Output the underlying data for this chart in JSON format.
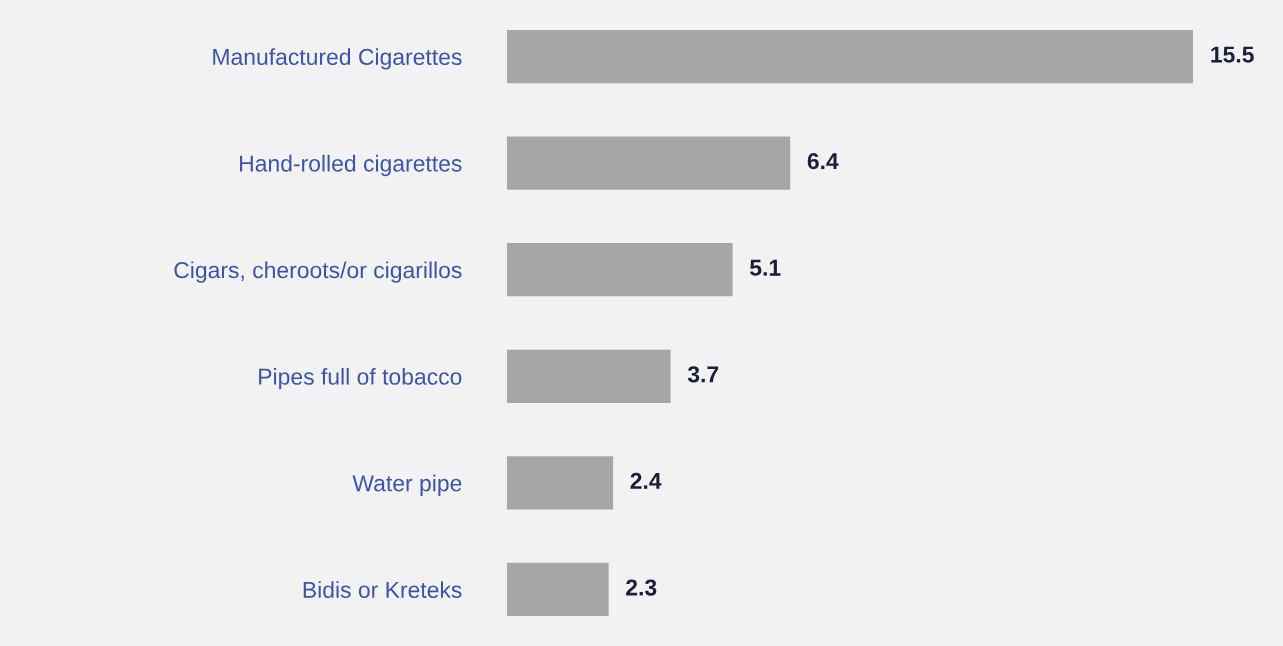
{
  "chart_data": {
    "type": "bar",
    "orientation": "horizontal",
    "categories": [
      "Manufactured Cigarettes",
      "Hand-rolled cigarettes",
      "Cigars, cheroots/or cigarillos",
      "Pipes full of tobacco",
      "Water pipe",
      "Bidis or Kreteks"
    ],
    "values": [
      15.5,
      6.4,
      5.1,
      3.7,
      2.4,
      2.3
    ],
    "color": "#a6a6a6",
    "data_labels": true,
    "grid": false,
    "legend": false
  }
}
